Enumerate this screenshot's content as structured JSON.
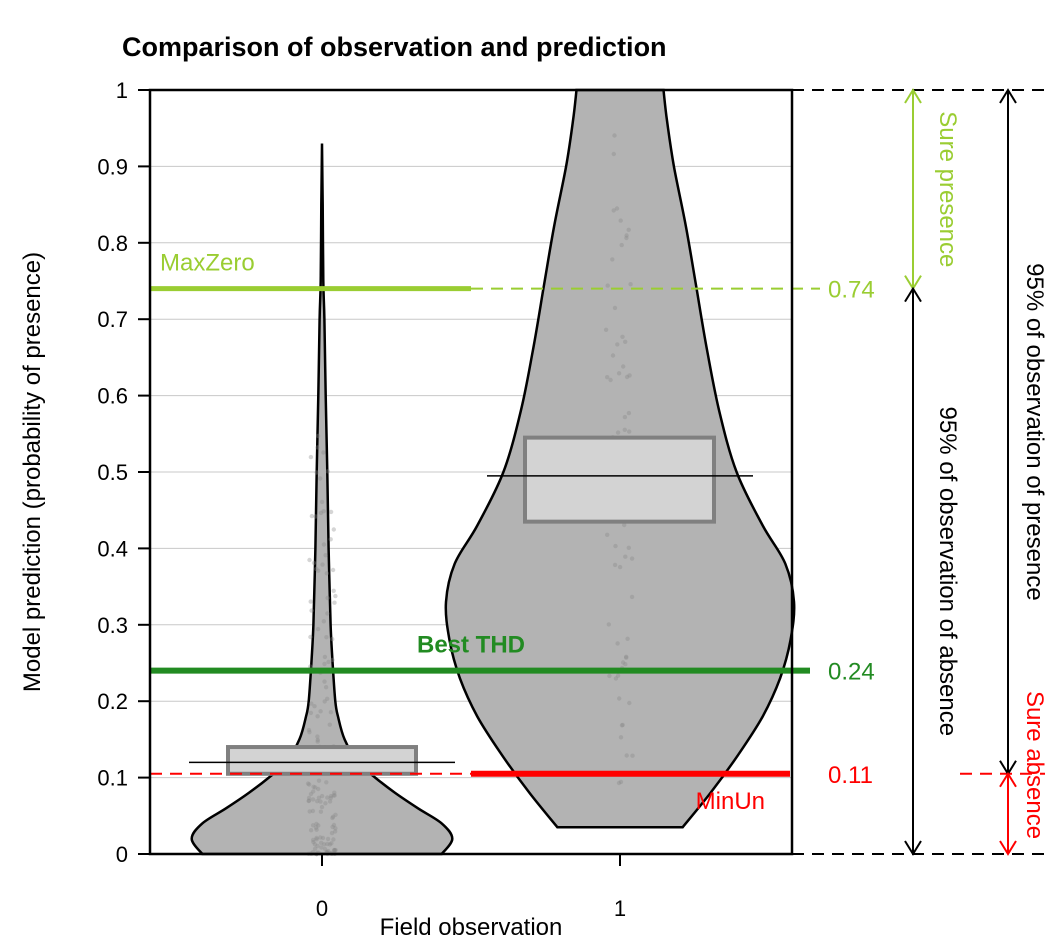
{
  "chart_data": {
    "type": "violin",
    "title": "Comparison of observation and prediction",
    "xlabel": "Field observation",
    "ylabel": "Model prediction (probability of presence)",
    "ylim": [
      0,
      1
    ],
    "yticks": [
      "0",
      "0.1",
      "0.2",
      "0.3",
      "0.4",
      "0.5",
      "0.6",
      "0.7",
      "0.8",
      "0.9",
      "1"
    ],
    "categories": [
      "0",
      "1"
    ],
    "grid": true,
    "violins": [
      {
        "category": "0",
        "y_range": [
          0.0,
          0.93
        ],
        "median": 0.12,
        "box": [
          0.105,
          0.14
        ],
        "density_profile": [
          [
            0.0,
            0.9
          ],
          [
            0.02,
            0.98
          ],
          [
            0.04,
            0.9
          ],
          [
            0.06,
            0.72
          ],
          [
            0.08,
            0.55
          ],
          [
            0.1,
            0.4
          ],
          [
            0.12,
            0.27
          ],
          [
            0.15,
            0.17
          ],
          [
            0.18,
            0.12
          ],
          [
            0.2,
            0.1
          ],
          [
            0.25,
            0.08
          ],
          [
            0.3,
            0.065
          ],
          [
            0.4,
            0.05
          ],
          [
            0.5,
            0.04
          ],
          [
            0.6,
            0.028
          ],
          [
            0.7,
            0.018
          ],
          [
            0.75,
            0.01
          ],
          [
            0.85,
            0.005
          ],
          [
            0.93,
            0.0
          ]
        ]
      },
      {
        "category": "1",
        "y_range": [
          0.035,
          1.0
        ],
        "median": 0.495,
        "box": [
          0.435,
          0.545
        ],
        "density_profile": [
          [
            0.035,
            0.36
          ],
          [
            0.08,
            0.52
          ],
          [
            0.13,
            0.68
          ],
          [
            0.18,
            0.82
          ],
          [
            0.23,
            0.92
          ],
          [
            0.28,
            0.98
          ],
          [
            0.33,
            1.0
          ],
          [
            0.38,
            0.95
          ],
          [
            0.43,
            0.82
          ],
          [
            0.5,
            0.67
          ],
          [
            0.58,
            0.57
          ],
          [
            0.66,
            0.5
          ],
          [
            0.74,
            0.44
          ],
          [
            0.82,
            0.38
          ],
          [
            0.9,
            0.31
          ],
          [
            0.96,
            0.27
          ],
          [
            1.0,
            0.25
          ]
        ]
      }
    ],
    "thresholds": [
      {
        "name": "MaxZero",
        "value": 0.74,
        "value_label": "0.74",
        "color": "#9acd32"
      },
      {
        "name": "Best THD",
        "value": 0.24,
        "value_label": "0.24",
        "color": "#228b22"
      },
      {
        "name": "MinUn",
        "value": 0.105,
        "value_label": "0.11",
        "color": "#ff0000"
      }
    ],
    "annotations": {
      "sure_presence": "Sure presence",
      "sure_absence": "Sure absence",
      "absence_95": "95% of observation of absence",
      "presence_95": "95% of observation of presence"
    },
    "colors": {
      "violin_fill": "#b3b3b3",
      "box_fill": "#d3d3d3",
      "box_stroke": "#808080",
      "grid": "#c8c8c8"
    }
  }
}
